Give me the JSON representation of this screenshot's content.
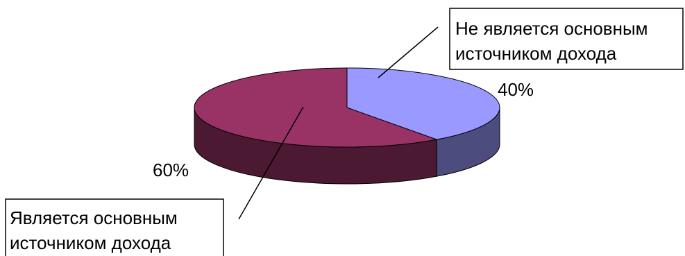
{
  "chart_data": {
    "type": "pie",
    "style": "3d",
    "title": "",
    "slices": [
      {
        "label_lines": [
          "Не является основным",
          "источником дохода"
        ],
        "value": 40,
        "percent_label": "40%",
        "color": "#9999ff",
        "side_color": "#4c4c7f"
      },
      {
        "label_lines": [
          "Является основным",
          "источником дохода"
        ],
        "value": 60,
        "percent_label": "60%",
        "color": "#993366",
        "side_color": "#4c1933"
      }
    ]
  }
}
